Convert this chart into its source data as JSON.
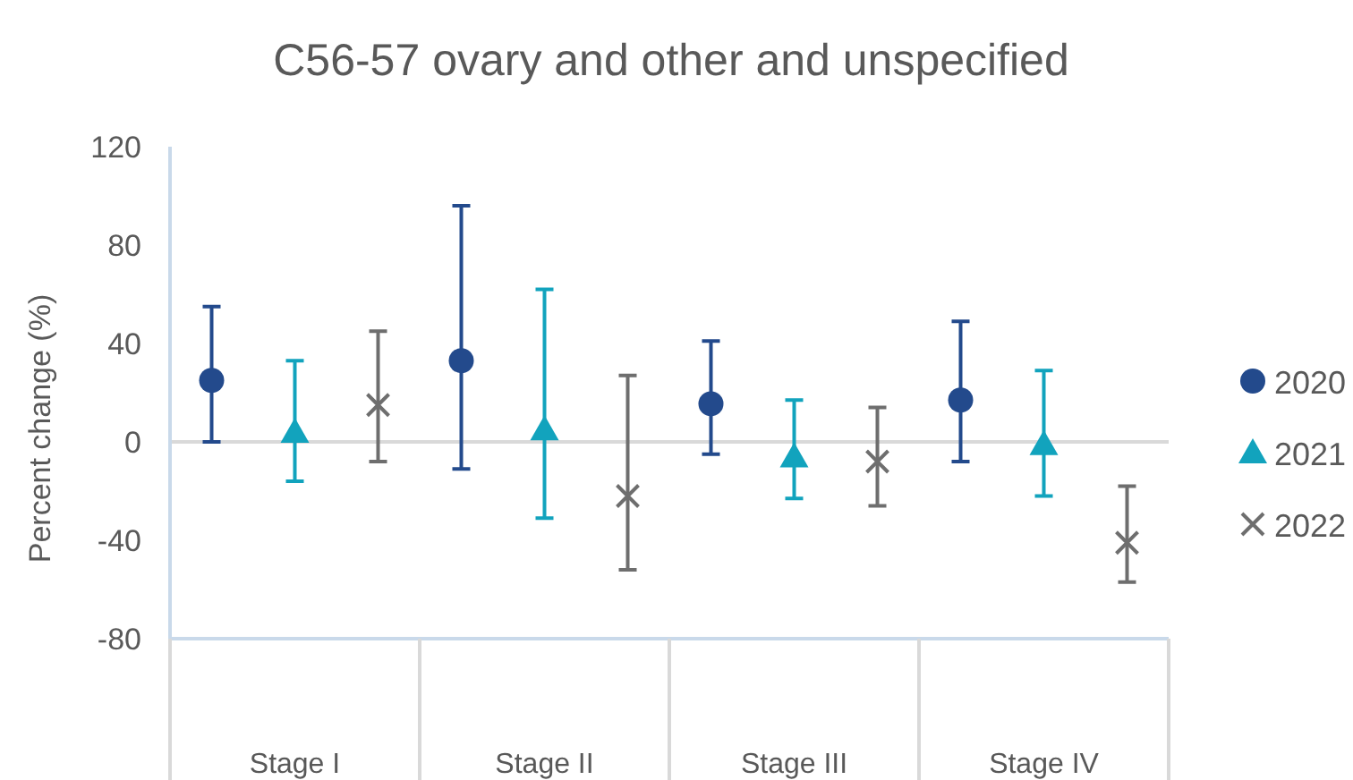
{
  "chart_data": {
    "type": "scatter",
    "title": "C56-57 ovary and other and unspecified",
    "ylabel": "Percent change (%)",
    "categories": [
      "Stage I",
      "Stage II",
      "Stage III",
      "Stage IV"
    ],
    "ylim": [
      -80,
      120
    ],
    "yticks": [
      -80,
      -40,
      0,
      40,
      80,
      120
    ],
    "grid": false,
    "legend": "right",
    "ref_lines": [
      {
        "axis": "y",
        "value": 0,
        "color": "#d9d9d9"
      }
    ],
    "series": [
      {
        "name": "2020",
        "color": "#234a8c",
        "marker": "circle",
        "values": [
          25,
          33,
          15.5,
          17
        ],
        "errors": [
          [
            0,
            55
          ],
          [
            -11,
            96
          ],
          [
            -5,
            41
          ],
          [
            -8,
            49
          ]
        ]
      },
      {
        "name": "2021",
        "color": "#12a3bd",
        "marker": "triangle",
        "values": [
          4,
          5,
          -6,
          -1
        ],
        "errors": [
          [
            -16,
            33
          ],
          [
            -31,
            62
          ],
          [
            -23,
            17
          ],
          [
            -22,
            29
          ]
        ]
      },
      {
        "name": "2022",
        "color": "#6e6e6e",
        "marker": "cross",
        "values": [
          15,
          -22,
          -8,
          -41
        ],
        "errors": [
          [
            -8,
            45
          ],
          [
            -52,
            27
          ],
          [
            -26,
            14
          ],
          [
            -57,
            -18
          ]
        ]
      }
    ]
  }
}
